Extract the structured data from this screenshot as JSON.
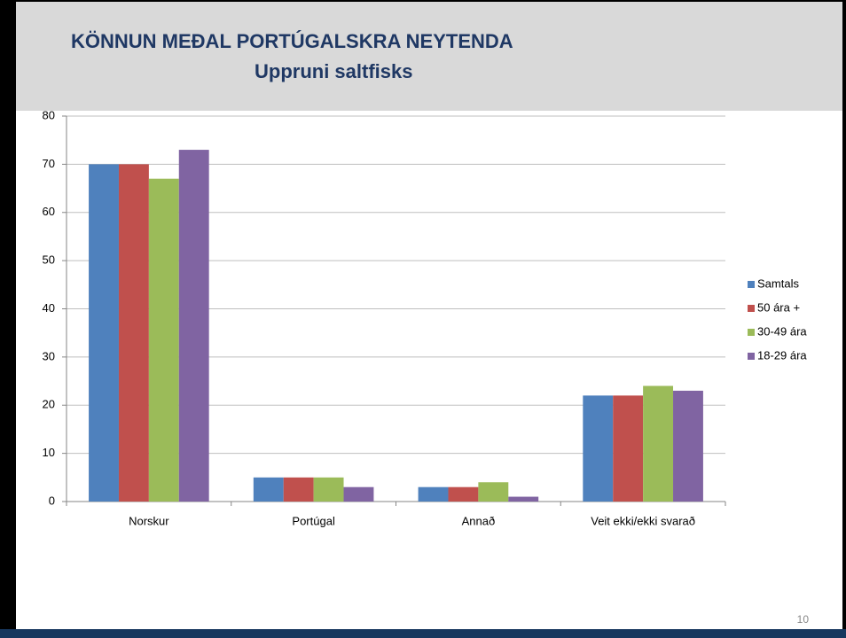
{
  "chart_data": {
    "type": "bar",
    "title": "KÖNNUN MEÐAL PORTÚGALSKRA  NEYTENDA",
    "subtitle": "Uppruni saltfisks",
    "categories": [
      "Norskur",
      "Portúgal",
      "Annað",
      "Veit ekki/ekki svarað"
    ],
    "series": [
      {
        "name": "Samtals",
        "color": "#4f81bd",
        "values": [
          70,
          5,
          3,
          22
        ]
      },
      {
        "name": "50 ára +",
        "color": "#c0504d",
        "values": [
          70,
          5,
          3,
          22
        ]
      },
      {
        "name": "30-49 ára",
        "color": "#9bbb59",
        "values": [
          67,
          5,
          4,
          24
        ]
      },
      {
        "name": "18-29 ára",
        "color": "#8064a2",
        "values": [
          73,
          3,
          1,
          23
        ]
      }
    ],
    "ylim": [
      0,
      80
    ],
    "yticks": [
      0,
      10,
      20,
      30,
      40,
      50,
      60,
      70,
      80
    ],
    "grid": true,
    "legend": "right"
  },
  "page_number": "10"
}
